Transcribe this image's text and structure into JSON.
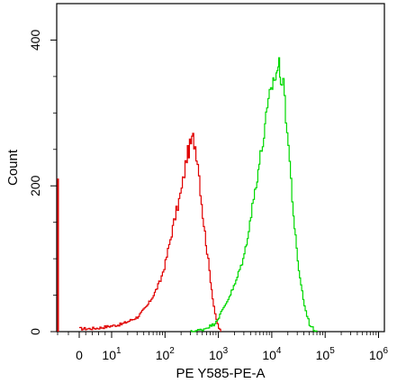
{
  "chart_data": {
    "type": "area",
    "title": "",
    "xlabel": "PE Y585-PE-A",
    "ylabel": "Count",
    "x_scale": "biexponential",
    "x_ticks": [
      {
        "value": 0,
        "label": "0"
      },
      {
        "value": 10,
        "label": "10",
        "sup": "1"
      },
      {
        "value": 100,
        "label": "10",
        "sup": "2"
      },
      {
        "value": 1000,
        "label": "10",
        "sup": "3"
      },
      {
        "value": 10000,
        "label": "10",
        "sup": "4"
      },
      {
        "value": 100000,
        "label": "10",
        "sup": "5"
      },
      {
        "value": 1000000,
        "label": "10",
        "sup": "6"
      }
    ],
    "y_ticks": [
      {
        "value": 0,
        "label": "0"
      },
      {
        "value": 200,
        "label": "200"
      },
      {
        "value": 400,
        "label": "400"
      }
    ],
    "ylim": [
      0,
      450
    ],
    "grid": false,
    "legend": "none",
    "series": [
      {
        "color": "#e00000",
        "x": [
          0,
          3,
          6,
          10,
          15,
          20,
          30,
          45,
          60,
          80,
          100,
          130,
          160,
          200,
          250,
          300,
          330,
          360,
          400,
          450,
          500,
          600,
          700,
          800,
          900,
          1000,
          1100
        ],
        "y": [
          4,
          4,
          5,
          8,
          10,
          14,
          20,
          35,
          50,
          70,
          95,
          135,
          165,
          195,
          240,
          258,
          265,
          255,
          235,
          195,
          160,
          110,
          70,
          35,
          15,
          5,
          0
        ]
      },
      {
        "color": "#00d800",
        "x": [
          300,
          500,
          800,
          1000,
          1500,
          2000,
          3000,
          4000,
          5000,
          6000,
          7000,
          8000,
          10000,
          12000,
          13000,
          14000,
          15000,
          17000,
          20000,
          25000,
          30000,
          40000,
          50000,
          60000,
          70000
        ],
        "y": [
          0,
          3,
          10,
          20,
          45,
          65,
          105,
          160,
          205,
          240,
          270,
          300,
          340,
          355,
          365,
          360,
          345,
          320,
          255,
          160,
          95,
          35,
          10,
          3,
          0
        ]
      }
    ],
    "spike_near_zero": {
      "x": 0,
      "y": 210,
      "color": "#e00000"
    }
  }
}
